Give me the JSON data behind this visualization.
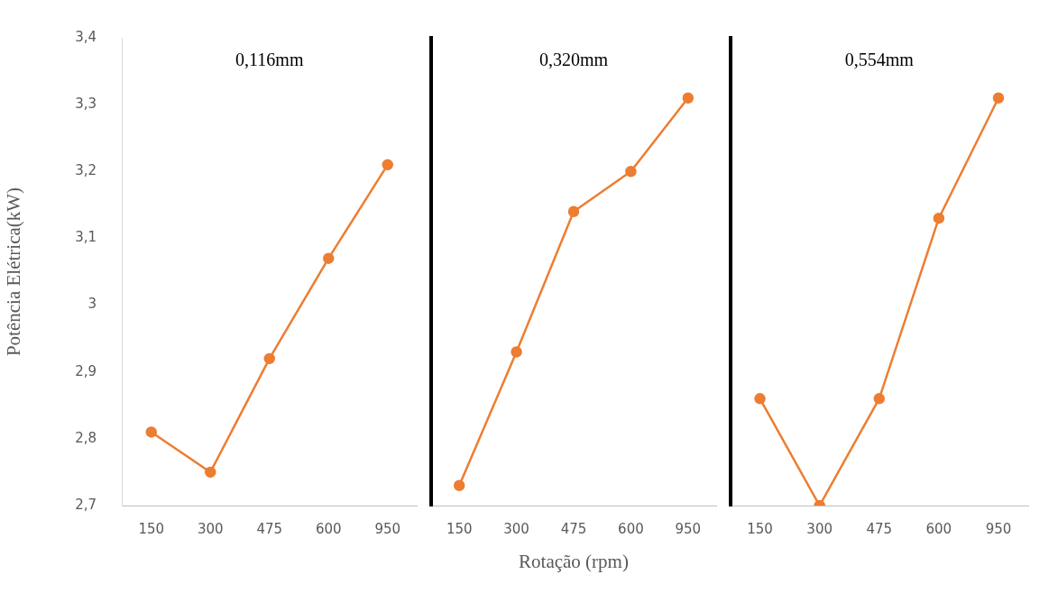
{
  "chart_data": [
    {
      "type": "line",
      "title": "0,116mm",
      "ylabel": "Potência Elétrica(kW)",
      "categories": [
        "150",
        "300",
        "475",
        "600",
        "950"
      ],
      "marker": "circle",
      "series": [
        {
          "color": "#ed7d31",
          "values": [
            2.81,
            2.75,
            2.92,
            3.07,
            3.21
          ]
        }
      ],
      "ylim": [
        2.7,
        3.4
      ],
      "yticks": [
        {
          "value": 2.7,
          "label": "2,7"
        },
        {
          "value": 2.8,
          "label": "2,8"
        },
        {
          "value": 2.9,
          "label": "2,9"
        },
        {
          "value": 3,
          "label": "3"
        },
        {
          "value": 3.1,
          "label": "3,1"
        },
        {
          "value": 3.2,
          "label": "3,2"
        },
        {
          "value": 3.3,
          "label": "3,3"
        },
        {
          "value": 3.4,
          "label": "3,4"
        }
      ]
    },
    {
      "type": "line",
      "title": "0,320mm",
      "xlabel": "Rotação (rpm)",
      "categories": [
        "150",
        "300",
        "475",
        "600",
        "950"
      ],
      "marker": "circle",
      "tick_labels": "x",
      "series": [
        {
          "color": "#ed7d31",
          "values": [
            2.73,
            2.93,
            3.14,
            3.2,
            3.31
          ]
        }
      ],
      "ylim": [
        2.7,
        3.4
      ]
    },
    {
      "type": "line",
      "title": "0,554mm",
      "categories": [
        "150",
        "300",
        "475",
        "600",
        "950"
      ],
      "marker": "circle",
      "tick_labels": "x",
      "series": [
        {
          "color": "#ed7d31",
          "values": [
            2.86,
            2.7,
            2.86,
            3.13,
            3.31
          ]
        }
      ],
      "ylim": [
        2.7,
        3.4
      ]
    }
  ]
}
